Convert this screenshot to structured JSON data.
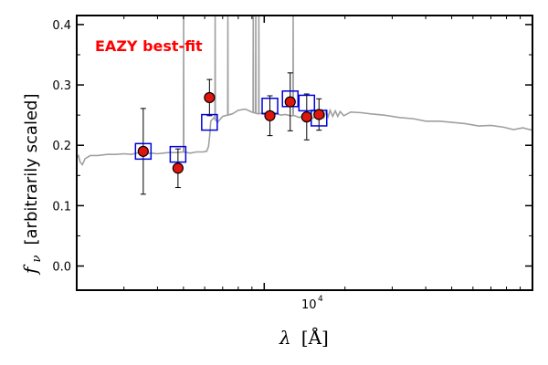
{
  "chart_data": {
    "type": "scatter",
    "x_scale": "log",
    "xlim": [
      2000,
      100000
    ],
    "ylim": [
      -0.04,
      0.415
    ],
    "yticks": [
      0.0,
      0.1,
      0.2,
      0.3,
      0.4
    ],
    "ytick_labels": [
      "0.0",
      "0.1",
      "0.2",
      "0.3",
      "0.4"
    ],
    "xtick_label": "10",
    "xtick_label_exp": "4",
    "xtick_value": 10000,
    "xlabel_symbol": "λ",
    "xlabel_unit": "[Å]",
    "ylabel_symbol": "f",
    "ylabel_sub": "ν",
    "ylabel_text": "[arbitrarily scaled]",
    "annotation": "EAZY best-fit",
    "annotation_color": "#ff0000",
    "colors": {
      "template": "#a0a0a0",
      "observed_face": "#e0150e",
      "observed_edge": "#000000",
      "model_box": "#0000dd"
    },
    "observed": [
      {
        "x": 3540,
        "y": 0.19,
        "err": 0.071
      },
      {
        "x": 4770,
        "y": 0.162,
        "err": 0.032
      },
      {
        "x": 6250,
        "y": 0.279,
        "err": 0.03
      },
      {
        "x": 10500,
        "y": 0.249,
        "err": 0.033
      },
      {
        "x": 12500,
        "y": 0.272,
        "err": 0.048
      },
      {
        "x": 14400,
        "y": 0.247,
        "err": 0.038
      },
      {
        "x": 16000,
        "y": 0.251,
        "err": 0.026
      }
    ],
    "model": [
      {
        "x": 3540,
        "y": 0.19
      },
      {
        "x": 4770,
        "y": 0.185
      },
      {
        "x": 6250,
        "y": 0.238
      },
      {
        "x": 10500,
        "y": 0.265
      },
      {
        "x": 12500,
        "y": 0.277
      },
      {
        "x": 14400,
        "y": 0.27
      },
      {
        "x": 16000,
        "y": 0.245
      }
    ],
    "template_continuum": [
      [
        2000,
        0.18
      ],
      [
        2030,
        0.183
      ],
      [
        2060,
        0.172
      ],
      [
        2100,
        0.168
      ],
      [
        2150,
        0.178
      ],
      [
        2250,
        0.183
      ],
      [
        2400,
        0.183
      ],
      [
        2600,
        0.185
      ],
      [
        2800,
        0.185
      ],
      [
        3000,
        0.186
      ],
      [
        3200,
        0.185
      ],
      [
        3400,
        0.188
      ],
      [
        3600,
        0.186
      ],
      [
        3800,
        0.187
      ],
      [
        4000,
        0.186
      ],
      [
        4200,
        0.187
      ],
      [
        4400,
        0.188
      ],
      [
        4700,
        0.188
      ],
      [
        5000,
        0.189
      ],
      [
        5300,
        0.187
      ],
      [
        5600,
        0.189
      ],
      [
        5900,
        0.189
      ],
      [
        6100,
        0.19
      ],
      [
        6200,
        0.198
      ],
      [
        6260,
        0.215
      ],
      [
        6320,
        0.24
      ],
      [
        6500,
        0.246
      ],
      [
        6700,
        0.238
      ],
      [
        7000,
        0.248
      ],
      [
        7300,
        0.25
      ],
      [
        7600,
        0.252
      ],
      [
        8000,
        0.258
      ],
      [
        8500,
        0.26
      ],
      [
        9000,
        0.255
      ],
      [
        9500,
        0.252
      ],
      [
        10000,
        0.254
      ],
      [
        10500,
        0.252
      ],
      [
        11000,
        0.254
      ],
      [
        11500,
        0.25
      ],
      [
        12000,
        0.251
      ],
      [
        12500,
        0.249
      ],
      [
        13000,
        0.249
      ],
      [
        13500,
        0.246
      ],
      [
        14000,
        0.248
      ],
      [
        14500,
        0.246
      ],
      [
        15000,
        0.244
      ],
      [
        15500,
        0.247
      ],
      [
        16000,
        0.249
      ],
      [
        16400,
        0.258
      ],
      [
        16700,
        0.246
      ],
      [
        17000,
        0.257
      ],
      [
        17300,
        0.247
      ],
      [
        17600,
        0.258
      ],
      [
        18000,
        0.248
      ],
      [
        18400,
        0.257
      ],
      [
        18800,
        0.248
      ],
      [
        19200,
        0.256
      ],
      [
        19800,
        0.249
      ],
      [
        21000,
        0.255
      ],
      [
        23000,
        0.254
      ],
      [
        25000,
        0.252
      ],
      [
        28000,
        0.25
      ],
      [
        32000,
        0.246
      ],
      [
        36000,
        0.244
      ],
      [
        40000,
        0.24
      ],
      [
        45000,
        0.24
      ],
      [
        50000,
        0.238
      ],
      [
        56000,
        0.236
      ],
      [
        63000,
        0.232
      ],
      [
        70000,
        0.233
      ],
      [
        78000,
        0.23
      ],
      [
        85000,
        0.226
      ],
      [
        92000,
        0.229
      ],
      [
        100000,
        0.225
      ]
    ],
    "template_emission_lines": [
      {
        "x": 5007,
        "y": 0.415
      },
      {
        "x": 6563,
        "y": 0.415
      },
      {
        "x": 7320,
        "y": 0.415
      },
      {
        "x": 9100,
        "y": 0.415
      },
      {
        "x": 9300,
        "y": 0.415
      },
      {
        "x": 9550,
        "y": 0.415
      },
      {
        "x": 12820,
        "y": 0.415
      }
    ]
  }
}
